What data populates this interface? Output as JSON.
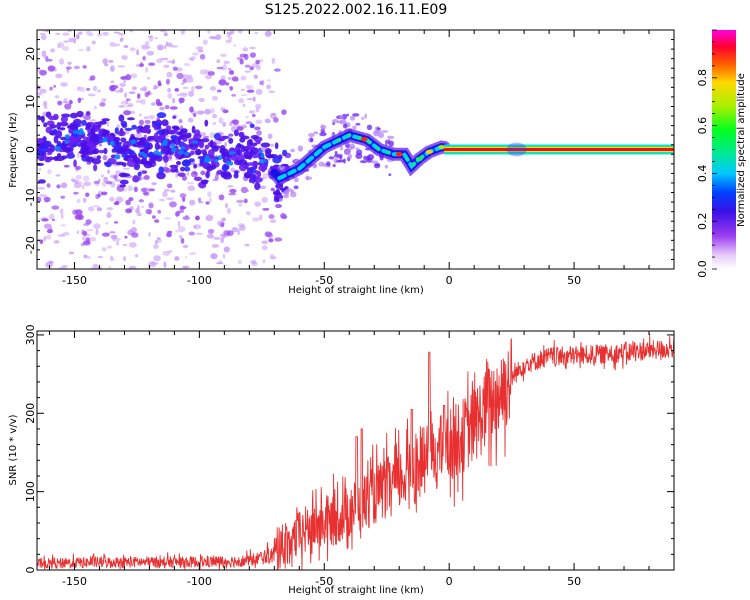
{
  "title": "S125.2022.002.16.11.E09",
  "chart_data": [
    {
      "type": "heatmap",
      "xlabel": "Height of straight line (km)",
      "ylabel": "Frequency (Hz)",
      "xlim": [
        -165,
        90
      ],
      "ylim": [
        -25,
        25
      ],
      "x_ticks": [
        "-150",
        "-100",
        "-50",
        "0",
        "50"
      ],
      "y_ticks": [
        "20",
        "10",
        "0",
        "-10",
        "-20"
      ],
      "colorbar": {
        "label": "Normalized spectral amplitude",
        "range": [
          0,
          1
        ],
        "ticks": [
          "0.0",
          "0.2",
          "0.4",
          "0.6",
          "0.8"
        ],
        "colormap": "gist_ncar-like (white, purple, blue, cyan, green, yellow, red, magenta)"
      },
      "ridge": {
        "x": [
          -165,
          -150,
          -130,
          -110,
          -90,
          -75,
          -68,
          -60,
          -50,
          -40,
          -33,
          -28,
          -22,
          -18,
          -15,
          -12,
          -8,
          -3,
          0,
          10,
          30,
          60,
          90
        ],
        "freq": [
          0.5,
          2.5,
          0.0,
          0.5,
          -1.0,
          -2.0,
          -6.0,
          -4.0,
          0.5,
          3.0,
          2.0,
          0.0,
          -1.0,
          -1.0,
          -3.5,
          -2.0,
          -0.5,
          0.5,
          0.3,
          0.0,
          0.0,
          0.0,
          0.0
        ]
      }
    },
    {
      "type": "line",
      "xlabel": "Height of straight line (km)",
      "ylabel": "SNR (10 * v/v)",
      "xlim": [
        -165,
        90
      ],
      "ylim": [
        0,
        305
      ],
      "x_ticks": [
        "-150",
        "-100",
        "-50",
        "0",
        "50"
      ],
      "y_ticks": [
        "0",
        "100",
        "200",
        "300"
      ],
      "color": "#e83030",
      "trend": {
        "x": [
          -165,
          -140,
          -100,
          -80,
          -70,
          -65,
          -60,
          -55,
          -50,
          -45,
          -40,
          -35,
          -30,
          -25,
          -20,
          -15,
          -10,
          -5,
          0,
          5,
          10,
          15,
          20,
          25,
          30,
          40,
          60,
          90
        ],
        "snr": [
          8,
          10,
          10,
          12,
          20,
          35,
          45,
          55,
          60,
          65,
          75,
          85,
          95,
          105,
          115,
          125,
          140,
          150,
          160,
          170,
          185,
          205,
          225,
          245,
          262,
          272,
          275,
          283
        ]
      },
      "spikes": [
        {
          "x": -37,
          "snr": 170
        },
        {
          "x": -35,
          "snr": 180
        },
        {
          "x": -15,
          "snr": 205
        },
        {
          "x": -8,
          "snr": 278
        },
        {
          "x": -2,
          "snr": 210
        }
      ]
    }
  ]
}
